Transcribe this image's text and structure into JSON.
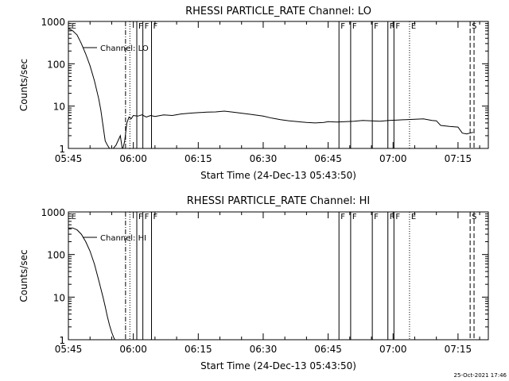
{
  "chart_data": [
    {
      "type": "line",
      "title": "RHESSI PARTICLE_RATE Channel: LO",
      "xlabel": "Start Time (24-Dec-13 05:43:50)",
      "ylabel": "Counts/sec",
      "x_unit": "minutes since 05:45",
      "xlim": [
        0,
        97
      ],
      "ylim": [
        1,
        1000
      ],
      "yscale": "log",
      "x_ticks": [
        {
          "value": 0,
          "label": "05:45"
        },
        {
          "value": 15,
          "label": "06:00"
        },
        {
          "value": 30,
          "label": "06:15"
        },
        {
          "value": 45,
          "label": "06:30"
        },
        {
          "value": 60,
          "label": "06:45"
        },
        {
          "value": 75,
          "label": "07:00"
        },
        {
          "value": 90,
          "label": "07:15"
        }
      ],
      "y_ticks": [
        {
          "value": 1,
          "label": "1"
        },
        {
          "value": 10,
          "label": "10"
        },
        {
          "value": 100,
          "label": "100"
        },
        {
          "value": 1000,
          "label": "1000"
        }
      ],
      "legend": "Channel: LO",
      "series": [
        {
          "name": "Channel: LO",
          "x": [
            0,
            1,
            2,
            3,
            4,
            5,
            6,
            7,
            7.5,
            8,
            8.5,
            9,
            9.5,
            10,
            11,
            12,
            12.5,
            13,
            13.5,
            14,
            14.5,
            15,
            16,
            17,
            18,
            19,
            20,
            22,
            24,
            26,
            28,
            30,
            32,
            34,
            36,
            38,
            40,
            42,
            44,
            45,
            47,
            49,
            51,
            53,
            55,
            57,
            59,
            60,
            62,
            64,
            66,
            68,
            70,
            72,
            74,
            76,
            78,
            80,
            82,
            84,
            85,
            86,
            88,
            90,
            91,
            92,
            93.5
          ],
          "y": [
            680,
            600,
            480,
            300,
            170,
            90,
            40,
            15,
            8,
            3.5,
            1.5,
            1.2,
            1,
            0.9,
            1.2,
            2,
            0.9,
            1.5,
            4,
            5.5,
            5,
            6,
            5.8,
            6.2,
            5.5,
            6,
            5.7,
            6.2,
            6,
            6.5,
            6.8,
            7,
            7.2,
            7.3,
            7.6,
            7.2,
            6.8,
            6.4,
            6,
            5.8,
            5.2,
            4.8,
            4.5,
            4.3,
            4.1,
            4,
            4.1,
            4.3,
            4.2,
            4.3,
            4.4,
            4.6,
            4.5,
            4.4,
            4.6,
            4.7,
            4.8,
            4.9,
            5,
            4.6,
            4.5,
            3.5,
            3.3,
            3.2,
            2.3,
            2.2,
            2.4
          ]
        }
      ],
      "markers": [
        {
          "x": 13.2,
          "style": "dashdot",
          "label": ""
        },
        {
          "x": 14.2,
          "style": "dotted",
          "label": ""
        },
        {
          "x": 15.8,
          "style": "solid",
          "label": "F"
        },
        {
          "x": 17.2,
          "style": "solid",
          "label": "F"
        },
        {
          "x": 19.2,
          "style": "solid",
          "label": "F"
        },
        {
          "x": 62.5,
          "style": "solid",
          "label": "F"
        },
        {
          "x": 65.2,
          "style": "solid",
          "label": "F"
        },
        {
          "x": 70.2,
          "style": "solid",
          "label": "F"
        },
        {
          "x": 73.8,
          "style": "solid",
          "label": "F"
        },
        {
          "x": 75.2,
          "style": "solid",
          "label": "F"
        },
        {
          "x": 78.8,
          "style": "dotted",
          "label": "E"
        },
        {
          "x": 92.8,
          "style": "dashed",
          "label": "S"
        },
        {
          "x": 93.7,
          "style": "dashed",
          "label": ""
        },
        {
          "x": 0.3,
          "style": "none",
          "label": "E"
        }
      ]
    },
    {
      "type": "line",
      "title": "RHESSI PARTICLE_RATE Channel: HI",
      "xlabel": "Start Time (24-Dec-13 05:43:50)",
      "ylabel": "Counts/sec",
      "x_unit": "minutes since 05:45",
      "xlim": [
        0,
        97
      ],
      "ylim": [
        1,
        1000
      ],
      "yscale": "log",
      "x_ticks": [
        {
          "value": 0,
          "label": "05:45"
        },
        {
          "value": 15,
          "label": "06:00"
        },
        {
          "value": 30,
          "label": "06:15"
        },
        {
          "value": 45,
          "label": "06:30"
        },
        {
          "value": 60,
          "label": "06:45"
        },
        {
          "value": 75,
          "label": "07:00"
        },
        {
          "value": 90,
          "label": "07:15"
        }
      ],
      "y_ticks": [
        {
          "value": 1,
          "label": "1"
        },
        {
          "value": 10,
          "label": "10"
        },
        {
          "value": 100,
          "label": "100"
        },
        {
          "value": 1000,
          "label": "1000"
        }
      ],
      "legend": "Channel: HI",
      "series": [
        {
          "name": "Channel: HI",
          "x": [
            0,
            1,
            2,
            3,
            4,
            5,
            6,
            7,
            8,
            8.5,
            9,
            9.5,
            10,
            10.5,
            11
          ],
          "y": [
            420,
            420,
            380,
            300,
            200,
            120,
            60,
            25,
            10,
            6,
            3.5,
            2.2,
            1.5,
            1.1,
            0.9
          ]
        }
      ],
      "markers": [
        {
          "x": 13.2,
          "style": "dashdot",
          "label": ""
        },
        {
          "x": 14.2,
          "style": "dotted",
          "label": ""
        },
        {
          "x": 15.8,
          "style": "solid",
          "label": "F"
        },
        {
          "x": 17.2,
          "style": "solid",
          "label": "F"
        },
        {
          "x": 19.2,
          "style": "solid",
          "label": "F"
        },
        {
          "x": 62.5,
          "style": "solid",
          "label": "F"
        },
        {
          "x": 65.2,
          "style": "solid",
          "label": "F"
        },
        {
          "x": 70.2,
          "style": "solid",
          "label": "F"
        },
        {
          "x": 73.8,
          "style": "solid",
          "label": "F"
        },
        {
          "x": 75.2,
          "style": "solid",
          "label": "F"
        },
        {
          "x": 78.8,
          "style": "dotted",
          "label": "E"
        },
        {
          "x": 92.8,
          "style": "dashed",
          "label": "S"
        },
        {
          "x": 93.7,
          "style": "dashed",
          "label": ""
        },
        {
          "x": 0.3,
          "style": "none",
          "label": "E"
        }
      ]
    }
  ],
  "footer": {
    "timestamp": "25-Oct-2021 17:46"
  }
}
